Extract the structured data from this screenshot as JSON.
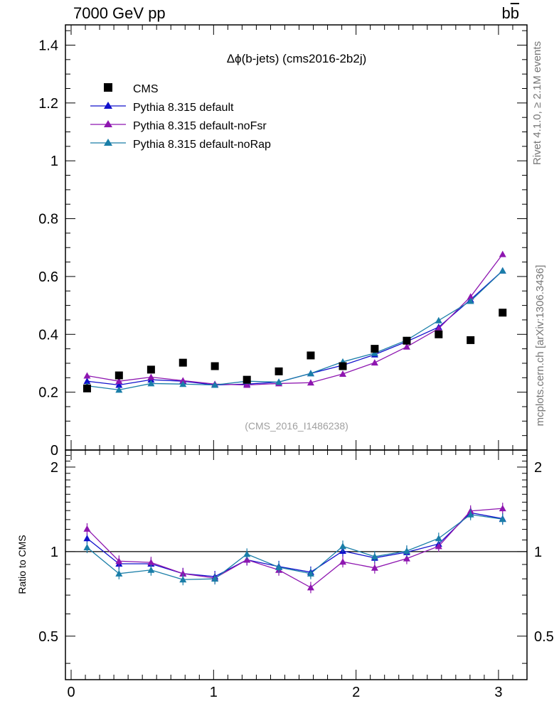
{
  "header": {
    "left_label": "7000 GeV pp",
    "right_label_base": "b",
    "right_label_bar": "b"
  },
  "side_labels": {
    "rivet": "Rivet 4.1.0, ≥ 2.1M events",
    "mcplots": "mcplots.cern.ch [arXiv:1306.3436]"
  },
  "chart_data": {
    "type": "scatter",
    "title": "Δϕ(b-jets) (cms2016-2b2j)",
    "watermark": "(CMS_2016_I1486238)",
    "xlabel": "",
    "ylabel_ratio": "Ratio to CMS",
    "xlim": [
      -0.04,
      3.2
    ],
    "ylim_main": [
      0,
      1.47
    ],
    "ylim_ratio": [
      0.35,
      2.3
    ],
    "xticks": [
      "0",
      "1",
      "2",
      "3"
    ],
    "yticks_main": [
      "0",
      "0.2",
      "0.4",
      "0.6",
      "0.8",
      "1",
      "1.2",
      "1.4"
    ],
    "yticks_ratio": [
      "0.5",
      "1",
      "2"
    ],
    "x": [
      0.112,
      0.336,
      0.561,
      0.785,
      1.009,
      1.234,
      1.458,
      1.682,
      1.907,
      2.131,
      2.356,
      2.58,
      2.804,
      3.029
    ],
    "data": {
      "name": "CMS",
      "color": "#000000",
      "values": [
        0.213,
        0.258,
        0.278,
        0.302,
        0.29,
        0.243,
        0.272,
        0.327,
        0.29,
        0.35,
        0.378,
        0.4,
        0.38,
        0.475
      ]
    },
    "series": [
      {
        "name": "Pythia 8.315 default",
        "color": "#1010cc",
        "values": [
          0.238,
          0.225,
          0.243,
          0.238,
          0.225,
          0.228,
          0.235,
          0.265,
          0.293,
          0.33,
          0.375,
          0.425,
          0.52,
          0.62
        ],
        "ratio": [
          1.115,
          0.905,
          0.905,
          0.835,
          0.815,
          0.935,
          0.885,
          0.845,
          1.005,
          0.95,
          0.995,
          1.065,
          1.375,
          1.31
        ]
      },
      {
        "name": "Pythia 8.315 default-noFsr",
        "color": "#8e16b0",
        "values": [
          0.257,
          0.238,
          0.252,
          0.24,
          0.228,
          0.225,
          0.23,
          0.233,
          0.263,
          0.302,
          0.357,
          0.42,
          0.53,
          0.677
        ],
        "ratio": [
          1.205,
          0.925,
          0.915,
          0.835,
          0.805,
          0.935,
          0.86,
          0.745,
          0.92,
          0.875,
          0.945,
          1.045,
          1.395,
          1.425
        ]
      },
      {
        "name": "Pythia 8.315 default-noRap",
        "color": "#1a7ea8",
        "values": [
          0.222,
          0.208,
          0.23,
          0.228,
          0.225,
          0.238,
          0.235,
          0.265,
          0.305,
          0.335,
          0.38,
          0.448,
          0.515,
          0.62
        ],
        "ratio": [
          1.035,
          0.835,
          0.86,
          0.795,
          0.8,
          0.98,
          0.88,
          0.835,
          1.045,
          0.96,
          1.005,
          1.115,
          1.355,
          1.305
        ]
      }
    ],
    "legend_position": "top-left"
  }
}
